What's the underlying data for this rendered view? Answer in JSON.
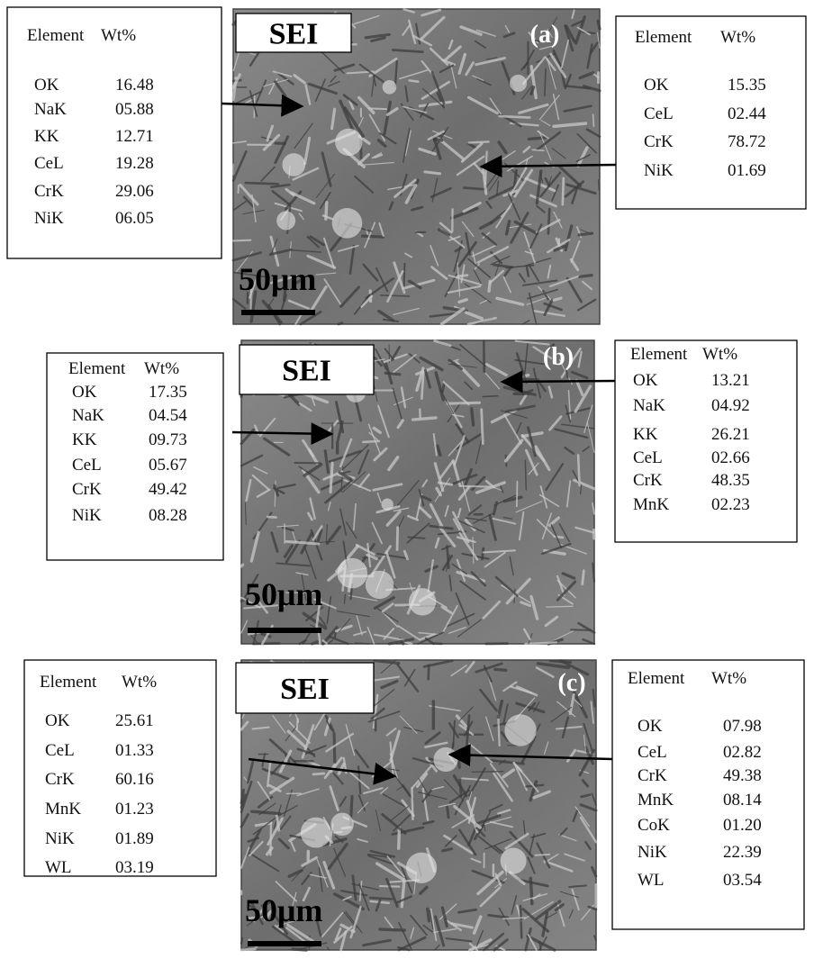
{
  "panels": [
    {
      "label": "(a)",
      "sei": "SEI",
      "scale": "50μm",
      "left": {
        "header": [
          "Element",
          "Wt%"
        ],
        "rows": [
          [
            "OK",
            "16.48"
          ],
          [
            "NaK",
            "05.88"
          ],
          [
            "KK",
            "12.71"
          ],
          [
            "CeL",
            "19.28"
          ],
          [
            "CrK",
            "29.06"
          ],
          [
            "NiK",
            "06.05"
          ]
        ]
      },
      "right": {
        "header": [
          "Element",
          "Wt%"
        ],
        "rows": [
          [
            "OK",
            "15.35"
          ],
          [
            "CeL",
            "02.44"
          ],
          [
            "CrK",
            "78.72"
          ],
          [
            "NiK",
            "01.69"
          ]
        ]
      }
    },
    {
      "label": "(b)",
      "sei": "SEI",
      "scale": "50μm",
      "left": {
        "header": [
          "Element",
          "Wt%"
        ],
        "rows": [
          [
            "OK",
            "17.35"
          ],
          [
            "NaK",
            "04.54"
          ],
          [
            "KK",
            "09.73"
          ],
          [
            "CeL",
            "05.67"
          ],
          [
            "CrK",
            "49.42"
          ],
          [
            "NiK",
            "08.28"
          ]
        ]
      },
      "right": {
        "header": [
          "Element",
          "Wt%"
        ],
        "rows": [
          [
            "OK",
            "13.21"
          ],
          [
            "NaK",
            "04.92"
          ],
          [
            "KK",
            "26.21"
          ],
          [
            "CeL",
            "02.66"
          ],
          [
            "CrK",
            "48.35"
          ],
          [
            "MnK",
            "02.23"
          ]
        ]
      }
    },
    {
      "label": "(c)",
      "sei": "SEI",
      "scale": "50μm",
      "left": {
        "header": [
          "Element",
          "Wt%"
        ],
        "rows": [
          [
            "OK",
            "25.61"
          ],
          [
            "CeL",
            "01.33"
          ],
          [
            "CrK",
            "60.16"
          ],
          [
            "MnK",
            "01.23"
          ],
          [
            "NiK",
            "01.89"
          ],
          [
            "WL",
            "03.19"
          ]
        ]
      },
      "right": {
        "header": [
          "Element",
          "Wt%"
        ],
        "rows": [
          [
            "OK",
            "07.98"
          ],
          [
            "CeL",
            "02.82"
          ],
          [
            "CrK",
            "49.38"
          ],
          [
            "MnK",
            "08.14"
          ],
          [
            "CoK",
            "01.20"
          ],
          [
            "NiK",
            "22.39"
          ],
          [
            "WL",
            "03.54"
          ]
        ]
      }
    }
  ]
}
